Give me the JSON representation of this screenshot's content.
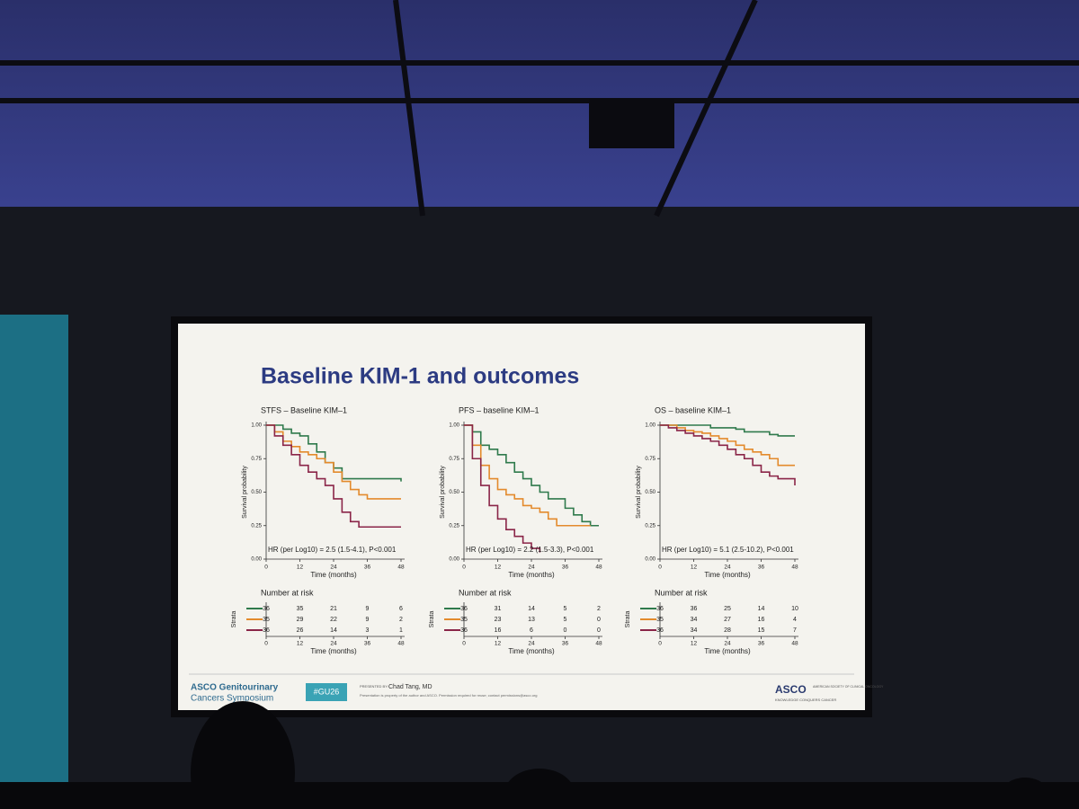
{
  "slide_title": "Baseline KIM-1 and outcomes",
  "chart_data": [
    {
      "type": "line",
      "drawstyle": "steps-post",
      "title": "STFS – Baseline KIM–1",
      "xlabel": "Time (months)",
      "ylabel": "Survival probability",
      "annotation": "HR (per Log10) = 2.5 (1.5-4.1), P<0.001",
      "x": [
        0,
        3,
        6,
        9,
        12,
        15,
        18,
        21,
        24,
        27,
        30,
        33,
        36,
        39,
        42,
        45,
        48
      ],
      "series": [
        {
          "color": "#2f7a4c",
          "values": [
            1,
            1,
            0.97,
            0.94,
            0.92,
            0.86,
            0.8,
            0.72,
            0.68,
            0.6,
            0.6,
            0.6,
            0.6,
            0.6,
            0.6,
            0.6,
            0.58
          ]
        },
        {
          "color": "#e38a2c",
          "values": [
            1,
            0.95,
            0.88,
            0.84,
            0.8,
            0.78,
            0.75,
            0.72,
            0.65,
            0.58,
            0.52,
            0.48,
            0.45,
            0.45,
            0.45,
            0.45,
            0.45
          ]
        },
        {
          "color": "#8a2548",
          "values": [
            1,
            0.92,
            0.85,
            0.78,
            0.7,
            0.65,
            0.6,
            0.55,
            0.45,
            0.35,
            0.28,
            0.24,
            0.24,
            0.24,
            0.24,
            0.24,
            0.24
          ]
        }
      ],
      "xlim": [
        0,
        48
      ],
      "ylim": [
        0,
        1
      ],
      "xticks": [
        0,
        12,
        24,
        36,
        48
      ],
      "yticks": [
        {
          "value": 0,
          "label": "0.00"
        },
        {
          "value": 0.25,
          "label": "0.25"
        },
        {
          "value": 0.5,
          "label": "0.50"
        },
        {
          "value": 0.75,
          "label": "0.75"
        },
        {
          "value": 1,
          "label": "1.00"
        }
      ],
      "risk_table": {
        "title": "Number at risk",
        "ylabel": "Strata",
        "times": [
          0,
          12,
          24,
          36,
          48
        ],
        "counts": [
          [
            36,
            35,
            21,
            9,
            6
          ],
          [
            35,
            29,
            22,
            9,
            2
          ],
          [
            36,
            26,
            14,
            3,
            1
          ]
        ]
      }
    },
    {
      "type": "line",
      "drawstyle": "steps-post",
      "title": "PFS – baseline KIM–1",
      "xlabel": "Time (months)",
      "ylabel": "Survival probability",
      "annotation": "HR (per Log10) = 2.2 (1.5-3.3), P<0.001",
      "x": [
        0,
        3,
        6,
        9,
        12,
        15,
        18,
        21,
        24,
        27,
        30,
        33,
        36,
        39,
        42,
        45,
        48
      ],
      "series": [
        {
          "color": "#2f7a4c",
          "values": [
            1,
            0.95,
            0.85,
            0.82,
            0.78,
            0.72,
            0.65,
            0.6,
            0.55,
            0.5,
            0.45,
            0.45,
            0.38,
            0.33,
            0.28,
            0.25,
            0.25
          ]
        },
        {
          "color": "#e38a2c",
          "values": [
            1,
            0.85,
            0.7,
            0.6,
            0.52,
            0.48,
            0.45,
            0.4,
            0.38,
            0.35,
            0.3,
            0.25,
            0.25,
            0.25,
            0.25,
            0.25,
            null
          ]
        },
        {
          "color": "#8a2548",
          "values": [
            1,
            0.75,
            0.55,
            0.4,
            0.3,
            0.22,
            0.17,
            0.12,
            0.08,
            0.05,
            null,
            null,
            null,
            null,
            null,
            null,
            null
          ]
        }
      ],
      "xlim": [
        0,
        48
      ],
      "ylim": [
        0,
        1
      ],
      "xticks": [
        0,
        12,
        24,
        36,
        48
      ],
      "yticks": [
        {
          "value": 0,
          "label": "0.00"
        },
        {
          "value": 0.25,
          "label": "0.25"
        },
        {
          "value": 0.5,
          "label": "0.50"
        },
        {
          "value": 0.75,
          "label": "0.75"
        },
        {
          "value": 1,
          "label": "1.00"
        }
      ],
      "risk_table": {
        "title": "Number at risk",
        "ylabel": "Strata",
        "times": [
          0,
          12,
          24,
          36,
          48
        ],
        "counts": [
          [
            36,
            31,
            14,
            5,
            2
          ],
          [
            35,
            23,
            13,
            5,
            0
          ],
          [
            36,
            16,
            6,
            0,
            0
          ]
        ]
      }
    },
    {
      "type": "line",
      "drawstyle": "steps-post",
      "title": "OS – baseline KIM–1",
      "xlabel": "Time (months)",
      "ylabel": "Survival probability",
      "annotation": "HR (per Log10) = 5.1 (2.5-10.2), P<0.001",
      "x": [
        0,
        3,
        6,
        9,
        12,
        15,
        18,
        21,
        24,
        27,
        30,
        33,
        36,
        39,
        42,
        45,
        48
      ],
      "series": [
        {
          "color": "#2f7a4c",
          "values": [
            1,
            1,
            1,
            1,
            1,
            1,
            0.98,
            0.98,
            0.98,
            0.97,
            0.95,
            0.95,
            0.95,
            0.93,
            0.92,
            0.92,
            0.92
          ]
        },
        {
          "color": "#e38a2c",
          "values": [
            1,
            1,
            0.98,
            0.96,
            0.95,
            0.94,
            0.92,
            0.9,
            0.88,
            0.85,
            0.82,
            0.8,
            0.78,
            0.75,
            0.7,
            0.7,
            0.7
          ]
        },
        {
          "color": "#8a2548",
          "values": [
            1,
            0.98,
            0.96,
            0.94,
            0.92,
            0.9,
            0.88,
            0.85,
            0.82,
            0.78,
            0.75,
            0.7,
            0.65,
            0.62,
            0.6,
            0.6,
            0.55
          ]
        }
      ],
      "xlim": [
        0,
        48
      ],
      "ylim": [
        0,
        1
      ],
      "xticks": [
        0,
        12,
        24,
        36,
        48
      ],
      "yticks": [
        {
          "value": 0,
          "label": "0.00"
        },
        {
          "value": 0.25,
          "label": "0.25"
        },
        {
          "value": 0.5,
          "label": "0.50"
        },
        {
          "value": 0.75,
          "label": "0.75"
        },
        {
          "value": 1,
          "label": "1.00"
        }
      ],
      "risk_table": {
        "title": "Number at risk",
        "ylabel": "Strata",
        "times": [
          0,
          12,
          24,
          36,
          48
        ],
        "counts": [
          [
            36,
            36,
            25,
            14,
            10
          ],
          [
            35,
            34,
            27,
            16,
            4
          ],
          [
            36,
            34,
            28,
            15,
            7
          ]
        ]
      }
    }
  ],
  "footer": {
    "meeting_line1": "ASCO Genitourinary",
    "meeting_line2": "Cancers Symposium",
    "hashtag": "#GU26",
    "presented_by": "PRESENTED BY:",
    "presenter": "Chad Tang, MD",
    "notice": "Presentation is property of the author and ASCO. Permission required for reuse; contact permissions@asco.org",
    "logo": "ASCO",
    "society": "AMERICAN SOCIETY OF CLINICAL ONCOLOGY",
    "tagline": "KNOWLEDGE CONQUERS CANCER"
  }
}
